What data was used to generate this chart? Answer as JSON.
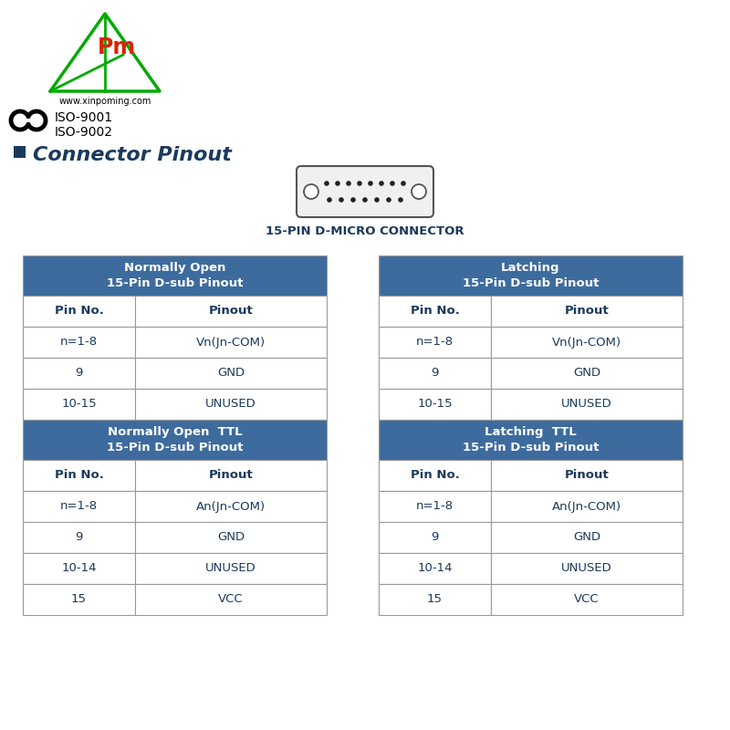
{
  "bg_color": "#ffffff",
  "logo_triangle_color": "#00aa00",
  "logo_text_color": "#dd2200",
  "logo_text": "Pm",
  "website": "www.xinpoming.com",
  "iso_line1": "ISO-9001",
  "iso_line2": "ISO-9002",
  "section_title": "Connector Pinout",
  "connector_label": "15-PIN D-MICRO CONNECTOR",
  "header_bg": "#3d6b9e",
  "header_fg": "#ffffff",
  "cell_bg": "#ffffff",
  "cell_fg": "#1a3a5c",
  "border_color": "#999999",
  "table_left_header1": "Normally Open\n15-Pin D-sub Pinout",
  "table_left_rows1": [
    [
      "Pin No.",
      "Pinout"
    ],
    [
      "n=1-8",
      "Vn(Jn-COM)"
    ],
    [
      "9",
      "GND"
    ],
    [
      "10-15",
      "UNUSED"
    ]
  ],
  "table_left_header2": "Normally Open  TTL\n15-Pin D-sub Pinout",
  "table_left_rows2": [
    [
      "Pin No.",
      "Pinout"
    ],
    [
      "n=1-8",
      "An(Jn-COM)"
    ],
    [
      "9",
      "GND"
    ],
    [
      "10-14",
      "UNUSED"
    ],
    [
      "15",
      "VCC"
    ]
  ],
  "table_right_header1": "Latching\n15-Pin D-sub Pinout",
  "table_right_rows1": [
    [
      "Pin No.",
      "Pinout"
    ],
    [
      "n=1-8",
      "Vn(Jn-COM)"
    ],
    [
      "9",
      "GND"
    ],
    [
      "10-15",
      "UNUSED"
    ]
  ],
  "table_right_header2": "Latching  TTL\n15-Pin D-sub Pinout",
  "table_right_rows2": [
    [
      "Pin No.",
      "Pinout"
    ],
    [
      "n=1-8",
      "An(Jn-COM)"
    ],
    [
      "9",
      "GND"
    ],
    [
      "10-14",
      "UNUSED"
    ],
    [
      "15",
      "VCC"
    ]
  ]
}
